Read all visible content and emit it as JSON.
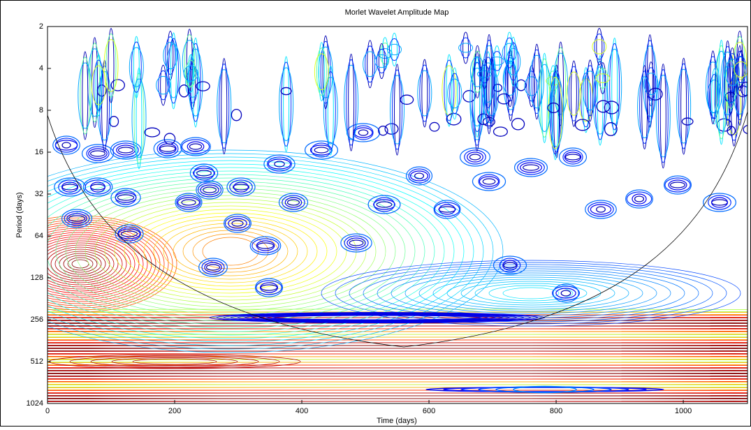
{
  "chart_data": {
    "type": "contour",
    "title": "Morlet Wavelet Amplitude Map",
    "x_label": "Time (days)",
    "y_label": "Period (days)",
    "xlim": [
      0,
      1101
    ],
    "xticks": [
      0,
      200,
      400,
      600,
      800,
      1000
    ],
    "ylim": [
      2,
      1024
    ],
    "yticks": [
      2,
      4,
      8,
      16,
      32,
      64,
      128,
      256,
      512,
      1024
    ],
    "y_log_base": 2,
    "y_reversed": true,
    "grid": false
  }
}
